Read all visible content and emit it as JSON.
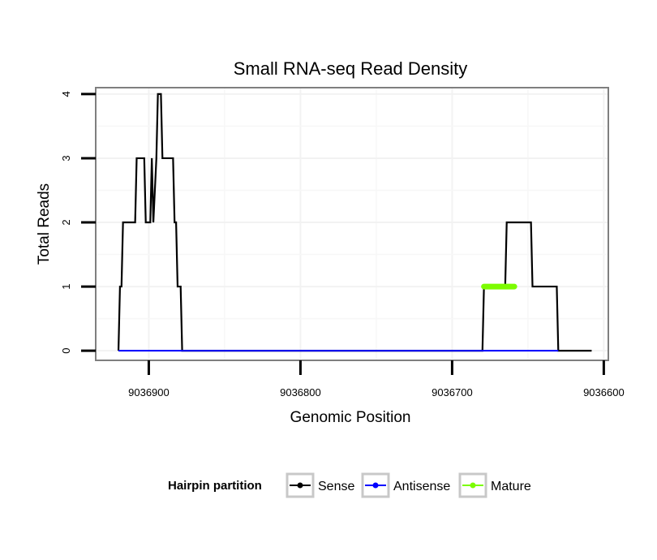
{
  "chart_data": {
    "type": "line",
    "title": "Small RNA-seq Read Density",
    "xlabel": "Genomic Position",
    "ylabel": "Total Reads",
    "x_reversed": true,
    "xlim": [
      9036935,
      9036597
    ],
    "ylim": [
      -0.15,
      4.1
    ],
    "x_ticks": [
      9036900,
      9036800,
      9036700,
      9036600
    ],
    "x_tick_labels": [
      "9036900",
      "9036800",
      "9036700",
      "9036600"
    ],
    "y_ticks": [
      0,
      1,
      2,
      3,
      4
    ],
    "y_tick_labels": [
      "0",
      "1",
      "2",
      "3",
      "4"
    ],
    "grid": true,
    "legend": {
      "title": "Hairpin partition",
      "position": "bottom",
      "entries": [
        "Sense",
        "Antisense",
        "Mature"
      ]
    },
    "series": [
      {
        "name": "Sense",
        "color": "#000000",
        "points": [
          [
            9036920,
            0
          ],
          [
            9036919,
            1
          ],
          [
            9036918,
            1
          ],
          [
            9036917,
            2
          ],
          [
            9036909,
            2
          ],
          [
            9036908,
            3
          ],
          [
            9036903,
            3
          ],
          [
            9036902,
            2
          ],
          [
            9036899,
            2
          ],
          [
            9036898,
            3
          ],
          [
            9036897,
            2
          ],
          [
            9036895,
            3
          ],
          [
            9036894,
            4
          ],
          [
            9036892,
            4
          ],
          [
            9036891,
            3
          ],
          [
            9036884,
            3
          ],
          [
            9036883,
            2
          ],
          [
            9036882,
            2
          ],
          [
            9036881,
            1
          ],
          [
            9036879,
            1
          ],
          [
            9036878,
            0
          ],
          [
            9036680,
            0
          ],
          [
            9036679,
            1
          ],
          [
            9036665,
            1
          ],
          [
            9036664,
            2
          ],
          [
            9036648,
            2
          ],
          [
            9036647,
            1
          ],
          [
            9036631,
            1
          ],
          [
            9036630,
            0
          ],
          [
            9036608,
            0
          ]
        ]
      },
      {
        "name": "Antisense",
        "color": "#0000ff",
        "points": [
          [
            9036920,
            0
          ],
          [
            9036878,
            0
          ],
          [
            9036680,
            0
          ],
          [
            9036630,
            0
          ]
        ]
      },
      {
        "name": "Mature",
        "color": "#7cfc00",
        "points": [
          [
            9036679,
            1
          ],
          [
            9036659,
            1
          ]
        ]
      }
    ]
  }
}
